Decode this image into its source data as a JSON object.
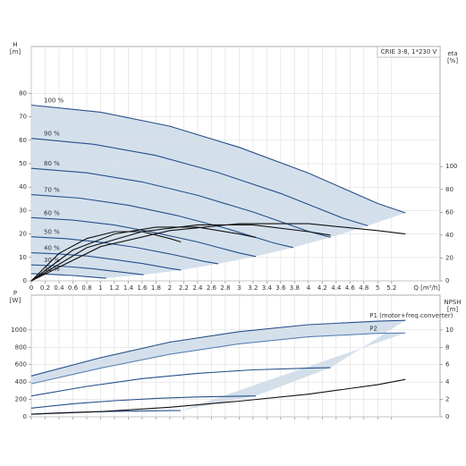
{
  "chart_data": [
    {
      "type": "line",
      "title": "CRIE 3-8, 1*230 V",
      "ylabel": "H",
      "yunit": "[m]",
      "y2label": "eta",
      "y2unit": "[%]",
      "xlabel": "Q [m³/h]",
      "xlim": [
        0,
        5.9
      ],
      "ylim": [
        0,
        100
      ],
      "y2lim": [
        0,
        205
      ],
      "xticks": [
        0,
        0.2,
        0.4,
        0.6,
        0.8,
        1,
        1.2,
        1.4,
        1.6,
        1.8,
        2,
        2.2,
        2.4,
        2.6,
        2.8,
        3,
        3.2,
        3.4,
        3.6,
        3.8,
        4,
        4.2,
        4.4,
        4.6,
        4.8,
        5,
        5.2
      ],
      "yticks": [
        0,
        10,
        20,
        30,
        40,
        50,
        60,
        70,
        80
      ],
      "y2ticks": [
        0,
        20,
        40,
        60,
        80,
        100
      ],
      "xtick_labels": true,
      "grid": true,
      "series_label": "start",
      "shade": "#cbdbe9",
      "series": [
        {
          "name": "100 %",
          "color": "#27508a",
          "x": [
            0,
            1,
            2,
            3,
            4,
            5,
            5.4
          ],
          "values": [
            75,
            72,
            66,
            57,
            46,
            33,
            29
          ]
        },
        {
          "name": "90 %",
          "color": "#27508a",
          "x": [
            0,
            0.9,
            1.8,
            2.7,
            3.6,
            4.5,
            4.86
          ],
          "values": [
            60.8,
            58.3,
            53.5,
            46.2,
            37.3,
            26.7,
            23.5
          ]
        },
        {
          "name": "80 %",
          "color": "#27508a",
          "x": [
            0,
            0.8,
            1.6,
            2.4,
            3.2,
            4,
            4.32
          ],
          "values": [
            48,
            46.1,
            42.2,
            36.5,
            29.4,
            21.1,
            18.6
          ]
        },
        {
          "name": "70 %",
          "color": "#27508a",
          "x": [
            0,
            0.7,
            1.4,
            2.1,
            2.8,
            3.5,
            3.78
          ],
          "values": [
            36.8,
            35.3,
            32.3,
            27.9,
            22.5,
            16.2,
            14.2
          ]
        },
        {
          "name": "60 %",
          "color": "#27508a",
          "x": [
            0,
            0.6,
            1.2,
            1.8,
            2.4,
            3,
            3.24
          ],
          "values": [
            27,
            25.9,
            23.8,
            20.5,
            16.6,
            11.9,
            10.4
          ]
        },
        {
          "name": "50 %",
          "color": "#27508a",
          "x": [
            0,
            0.5,
            1,
            1.5,
            2,
            2.5,
            2.7
          ],
          "values": [
            18.8,
            18,
            16.5,
            14.3,
            11.5,
            8.3,
            7.3
          ]
        },
        {
          "name": "40 %",
          "color": "#27508a",
          "x": [
            0,
            0.4,
            0.8,
            1.2,
            1.6,
            2,
            2.16
          ],
          "values": [
            12,
            11.5,
            10.6,
            9.1,
            7.4,
            5.3,
            4.6
          ]
        },
        {
          "name": "30 %",
          "color": "#27508a",
          "x": [
            0,
            0.3,
            0.6,
            0.9,
            1.2,
            1.5,
            1.62
          ],
          "values": [
            6.8,
            6.5,
            5.9,
            5.1,
            4.1,
            3,
            2.6
          ]
        },
        {
          "name": "20 %",
          "color": "#27508a",
          "x": [
            0,
            0.2,
            0.4,
            0.6,
            0.8,
            1,
            1.08
          ],
          "values": [
            3,
            2.9,
            2.6,
            2.3,
            1.8,
            1.3,
            1.2
          ]
        },
        {
          "color": "#111111",
          "axis": "y2",
          "x": [
            0,
            1,
            2,
            3,
            4,
            5,
            5.4
          ],
          "values": [
            0,
            30,
            44,
            50,
            50,
            44,
            41
          ]
        },
        {
          "color": "#111111",
          "axis": "y2",
          "x": [
            0,
            0.8,
            1.6,
            2.4,
            3.2,
            4,
            4.32
          ],
          "values": [
            0,
            29,
            43,
            49,
            49,
            43,
            40
          ]
        },
        {
          "color": "#111111",
          "axis": "y2",
          "x": [
            0,
            0.6,
            1.2,
            1.8,
            2.4,
            3,
            3.24
          ],
          "values": [
            0,
            27,
            41,
            47,
            47,
            41,
            38
          ]
        },
        {
          "color": "#111111",
          "axis": "y2",
          "x": [
            0,
            0.4,
            0.8,
            1.2,
            1.6,
            2,
            2.16
          ],
          "values": [
            0,
            24,
            37,
            43,
            43,
            37,
            34
          ]
        }
      ]
    },
    {
      "type": "line",
      "ylabel": "P",
      "yunit": "[W]",
      "y2label": "NPSH",
      "y2unit": "[m]",
      "xlim": [
        0,
        5.9
      ],
      "ylim": [
        0,
        1400
      ],
      "y2lim": [
        0,
        14
      ],
      "xticks": [
        0,
        0.2,
        0.4,
        0.6,
        0.8,
        1,
        1.2,
        1.4,
        1.6,
        1.8,
        2,
        2.2,
        2.4,
        2.6,
        2.8,
        3,
        3.2,
        3.4,
        3.6,
        3.8,
        4,
        4.2,
        4.4,
        4.6,
        4.8,
        5,
        5.2
      ],
      "yticks": [
        0,
        200,
        400,
        600,
        800,
        1000
      ],
      "y2ticks": [
        0,
        2,
        4,
        6,
        8,
        10
      ],
      "xtick_labels": false,
      "grid": true,
      "series_label": "end",
      "shade": "#cbdbe9",
      "series": [
        {
          "name": "P1 (motor+freq.converter)",
          "color": "#27508a",
          "x": [
            0,
            1,
            2,
            3,
            4,
            5,
            5.4
          ],
          "values": [
            470,
            680,
            860,
            980,
            1060,
            1100,
            1110
          ]
        },
        {
          "color": "#27508a",
          "x": [
            0,
            0.8,
            1.6,
            2.4,
            3.2,
            4,
            4.32
          ],
          "values": [
            240,
            350,
            440,
            500,
            540,
            560,
            565
          ]
        },
        {
          "color": "#27508a",
          "x": [
            0,
            0.6,
            1.2,
            1.8,
            2.4,
            3,
            3.24
          ],
          "values": [
            100,
            150,
            185,
            212,
            229,
            238,
            240
          ]
        },
        {
          "color": "#27508a",
          "x": [
            0,
            0.4,
            0.8,
            1.2,
            1.6,
            2,
            2.16
          ],
          "values": [
            30,
            45,
            56,
            63,
            68,
            71,
            72
          ]
        },
        {
          "name": "P2",
          "color": "#5b82b5",
          "x": [
            0,
            1,
            2,
            3,
            4,
            5,
            5.4
          ],
          "values": [
            380,
            560,
            720,
            840,
            920,
            960,
            965
          ]
        },
        {
          "color": "#111111",
          "axis": "y2",
          "x": [
            0,
            1,
            2,
            3,
            4,
            5,
            5.4
          ],
          "values": [
            0.3,
            0.6,
            1.1,
            1.8,
            2.6,
            3.7,
            4.3
          ]
        }
      ]
    }
  ]
}
